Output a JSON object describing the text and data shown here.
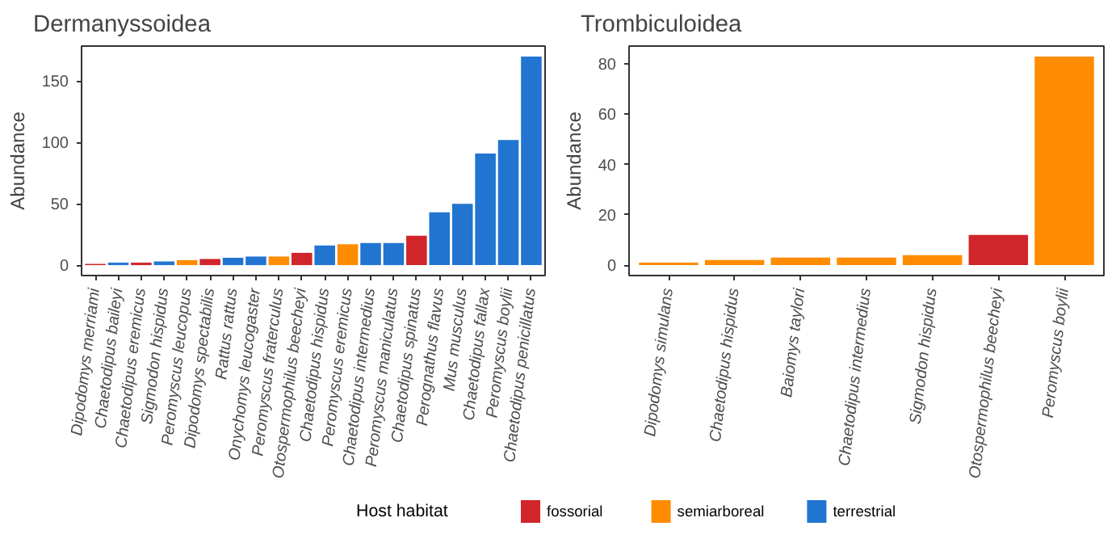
{
  "chart_data": [
    {
      "type": "bar",
      "title": "Dermanyssoidea",
      "ylabel": "Abundance",
      "legend": "bottom",
      "legend_title": "Host habitat",
      "categories": [
        "Dipodomys merriami",
        "Chaetodipus baileyi",
        "Chaetodipus eremicus",
        "Sigmodon hispidus",
        "Peromyscus leucopus",
        "Dipodomys spectabilis",
        "Rattus rattus",
        "Onychomys leucogaster",
        "Peromyscus fraterculus",
        "Otospermophilus beecheyi",
        "Chaetodipus hispidus",
        "Peromyscus eremicus",
        "Chaetodipus intermedius",
        "Peromyscus maniculatus",
        "Chaetodipus spinatus",
        "Perognathus flavus",
        "Mus musculus",
        "Chaetodipus fallax",
        "Peromyscus boylii",
        "Chaetodipus penicillatus"
      ],
      "series": [
        {
          "name": "fossorial",
          "color": "#d0252a",
          "values": [
            1,
            null,
            2,
            null,
            null,
            5,
            null,
            null,
            null,
            10,
            null,
            null,
            null,
            null,
            24,
            null,
            null,
            null,
            null,
            null
          ]
        },
        {
          "name": "semiarboreal",
          "color": "#ff8c00",
          "values": [
            null,
            null,
            null,
            null,
            4,
            null,
            null,
            null,
            7,
            null,
            null,
            17,
            null,
            null,
            null,
            null,
            null,
            null,
            null,
            null
          ]
        },
        {
          "name": "terrestrial",
          "color": "#2175d0",
          "values": [
            null,
            2,
            null,
            3,
            null,
            null,
            6,
            7,
            null,
            null,
            16,
            null,
            18,
            18,
            null,
            43,
            50,
            91,
            102,
            170
          ]
        }
      ],
      "ylim": [
        -8.5,
        178.5
      ],
      "yticks": [
        0,
        50,
        100,
        150
      ]
    },
    {
      "type": "bar",
      "title": "Trombiculoidea",
      "ylabel": "Abundance",
      "legend": "bottom",
      "categories": [
        "Dipodomys simulans",
        "Chaetodipus hispidus",
        "Baiomys taylori",
        "Chaetodipus intermedius",
        "Sigmodon hispidus",
        "Otospermophilus beecheyi",
        "Peromyscus boylii"
      ],
      "series": [
        {
          "name": "fossorial",
          "color": "#d0252a",
          "values": [
            null,
            null,
            null,
            null,
            null,
            12,
            null
          ]
        },
        {
          "name": "semiarboreal",
          "color": "#ff8c00",
          "values": [
            1,
            2,
            3,
            3,
            4,
            null,
            83
          ]
        },
        {
          "name": "terrestrial",
          "color": "#2175d0",
          "values": [
            null,
            null,
            null,
            null,
            null,
            null,
            null
          ]
        }
      ],
      "ylim": [
        -4.15,
        87.15
      ],
      "yticks": [
        0,
        20,
        40,
        60,
        80
      ]
    }
  ]
}
